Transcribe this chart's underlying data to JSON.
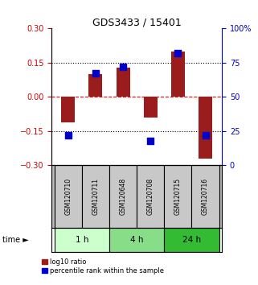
{
  "title": "GDS3433 / 15401",
  "samples": [
    "GSM120710",
    "GSM120711",
    "GSM120648",
    "GSM120708",
    "GSM120715",
    "GSM120716"
  ],
  "log10_ratio": [
    -0.11,
    0.1,
    0.13,
    -0.09,
    0.2,
    -0.27
  ],
  "percentile_rank": [
    22,
    67,
    72,
    18,
    82,
    22
  ],
  "bar_color": "#9B1C1C",
  "dot_color": "#0000CC",
  "ylim_left": [
    -0.3,
    0.3
  ],
  "ylim_right": [
    0,
    100
  ],
  "yticks_left": [
    -0.3,
    -0.15,
    0,
    0.15,
    0.3
  ],
  "yticks_right": [
    0,
    25,
    50,
    75,
    100
  ],
  "ytick_labels_right": [
    "0",
    "25",
    "50",
    "75",
    "100%"
  ],
  "time_groups": [
    {
      "label": "1 h",
      "samples": [
        0,
        1
      ],
      "color": "#CCFFCC"
    },
    {
      "label": "4 h",
      "samples": [
        2,
        3
      ],
      "color": "#88DD88"
    },
    {
      "label": "24 h",
      "samples": [
        4,
        5
      ],
      "color": "#33BB33"
    }
  ],
  "legend_items": [
    {
      "label": "log10 ratio",
      "color": "#9B1C1C"
    },
    {
      "label": "percentile rank within the sample",
      "color": "#0000CC"
    }
  ],
  "bar_width": 0.5,
  "dot_size": 28,
  "left_axis_color": "#CC0000",
  "right_axis_color": "#0000CC",
  "background_color": "white"
}
